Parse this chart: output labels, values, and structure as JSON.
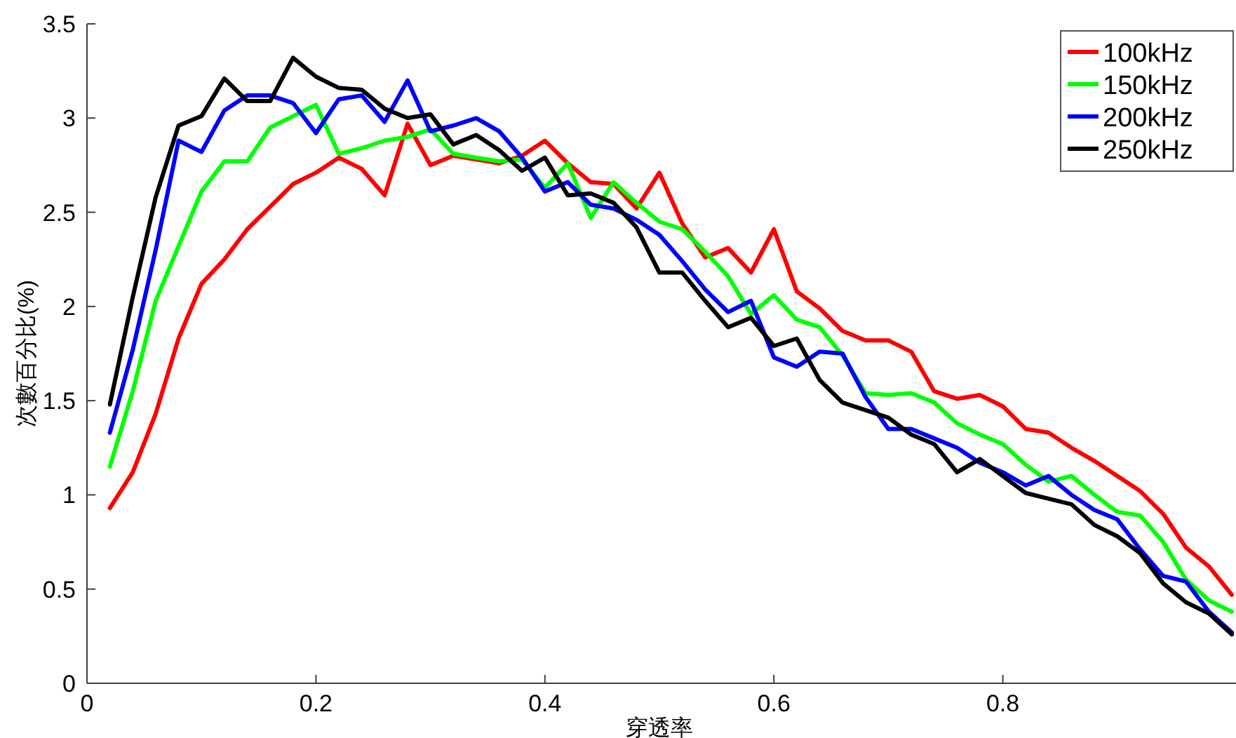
{
  "chart_data": {
    "type": "line",
    "xlabel": "穿透率",
    "ylabel": "次數百分比(%)",
    "x": [
      0.02,
      0.04,
      0.06,
      0.08,
      0.1,
      0.12,
      0.14,
      0.16,
      0.18,
      0.2,
      0.22,
      0.24,
      0.26,
      0.28,
      0.3,
      0.32,
      0.34,
      0.36,
      0.38,
      0.4,
      0.42,
      0.44,
      0.46,
      0.48,
      0.5,
      0.52,
      0.54,
      0.56,
      0.58,
      0.6,
      0.62,
      0.64,
      0.66,
      0.68,
      0.7,
      0.72,
      0.74,
      0.76,
      0.78,
      0.8,
      0.82,
      0.84,
      0.86,
      0.88,
      0.9,
      0.92,
      0.94,
      0.96,
      0.98,
      1.0
    ],
    "series": [
      {
        "name": "100kHz",
        "color": "#ff0000",
        "values": [
          0.93,
          1.12,
          1.43,
          1.83,
          2.12,
          2.25,
          2.41,
          2.53,
          2.65,
          2.71,
          2.79,
          2.73,
          2.59,
          2.97,
          2.75,
          2.8,
          2.78,
          2.76,
          2.8,
          2.88,
          2.76,
          2.66,
          2.65,
          2.52,
          2.71,
          2.44,
          2.26,
          2.31,
          2.18,
          2.41,
          2.08,
          1.99,
          1.87,
          1.82,
          1.82,
          1.76,
          1.55,
          1.51,
          1.53,
          1.47,
          1.35,
          1.33,
          1.25,
          1.18,
          1.1,
          1.02,
          0.9,
          0.72,
          0.62,
          0.47
        ]
      },
      {
        "name": "150kHz",
        "color": "#00ff00",
        "values": [
          1.15,
          1.55,
          2.03,
          2.32,
          2.61,
          2.77,
          2.77,
          2.95,
          3.01,
          3.07,
          2.81,
          2.84,
          2.88,
          2.9,
          2.94,
          2.81,
          2.79,
          2.77,
          2.78,
          2.63,
          2.76,
          2.47,
          2.66,
          2.55,
          2.45,
          2.41,
          2.29,
          2.16,
          1.96,
          2.06,
          1.93,
          1.89,
          1.74,
          1.54,
          1.53,
          1.54,
          1.49,
          1.38,
          1.32,
          1.27,
          1.16,
          1.07,
          1.1,
          1.0,
          0.91,
          0.89,
          0.75,
          0.55,
          0.44,
          0.38
        ]
      },
      {
        "name": "200kHz",
        "color": "#0000ff",
        "values": [
          1.33,
          1.77,
          2.3,
          2.88,
          2.82,
          3.04,
          3.12,
          3.12,
          3.08,
          2.92,
          3.1,
          3.12,
          2.98,
          3.2,
          2.93,
          2.96,
          3.0,
          2.93,
          2.79,
          2.61,
          2.66,
          2.54,
          2.52,
          2.46,
          2.38,
          2.24,
          2.09,
          1.97,
          2.03,
          1.73,
          1.68,
          1.76,
          1.75,
          1.52,
          1.35,
          1.35,
          1.3,
          1.25,
          1.17,
          1.12,
          1.05,
          1.1,
          1.0,
          0.92,
          0.87,
          0.71,
          0.57,
          0.54,
          0.38,
          0.27
        ]
      },
      {
        "name": "250kHz",
        "color": "#000000",
        "values": [
          1.48,
          2.05,
          2.58,
          2.96,
          3.01,
          3.21,
          3.09,
          3.09,
          3.32,
          3.22,
          3.16,
          3.15,
          3.05,
          3.0,
          3.02,
          2.86,
          2.91,
          2.83,
          2.72,
          2.79,
          2.59,
          2.6,
          2.55,
          2.42,
          2.18,
          2.18,
          2.03,
          1.89,
          1.94,
          1.79,
          1.83,
          1.61,
          1.49,
          1.45,
          1.41,
          1.32,
          1.27,
          1.12,
          1.19,
          1.1,
          1.01,
          0.98,
          0.95,
          0.84,
          0.78,
          0.69,
          0.53,
          0.43,
          0.37,
          0.26
        ]
      }
    ],
    "xlim": [
      0,
      1
    ],
    "ylim": [
      0,
      3.5
    ],
    "xticks": [
      0,
      0.2,
      0.4,
      0.6,
      0.8
    ],
    "yticks": [
      0,
      0.5,
      1,
      1.5,
      2,
      2.5,
      3,
      3.5
    ],
    "legend": "top right",
    "line_style": "solid",
    "marker": "none"
  }
}
